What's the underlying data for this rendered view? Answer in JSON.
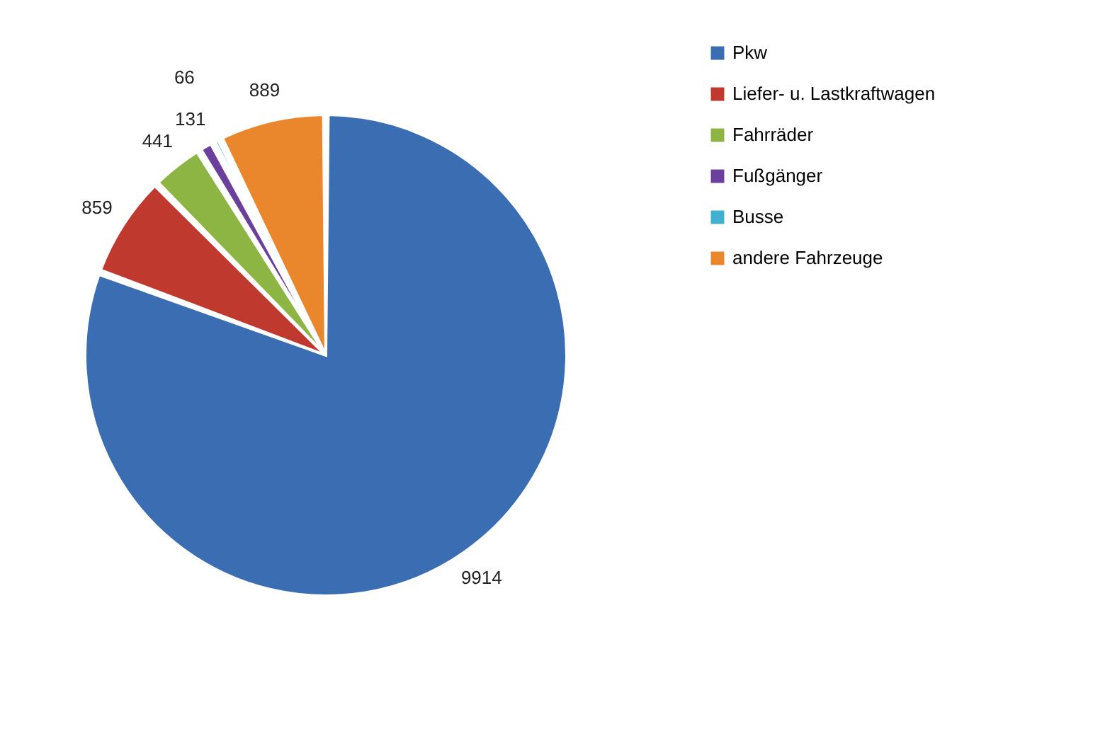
{
  "chart_data": {
    "type": "pie",
    "categories": [
      "Pkw",
      "Liefer- u. Lastkraftwagen",
      "Fahrräder",
      "Fußgänger",
      "Busse",
      "andere Fahrzeuge"
    ],
    "values": [
      9914,
      859,
      441,
      131,
      66,
      889
    ],
    "colors": [
      "#3b6db3",
      "#c0392f",
      "#8cb543",
      "#6b3f9c",
      "#3fb2cf",
      "#ea862c"
    ],
    "data_labels": true,
    "legend": "right"
  }
}
